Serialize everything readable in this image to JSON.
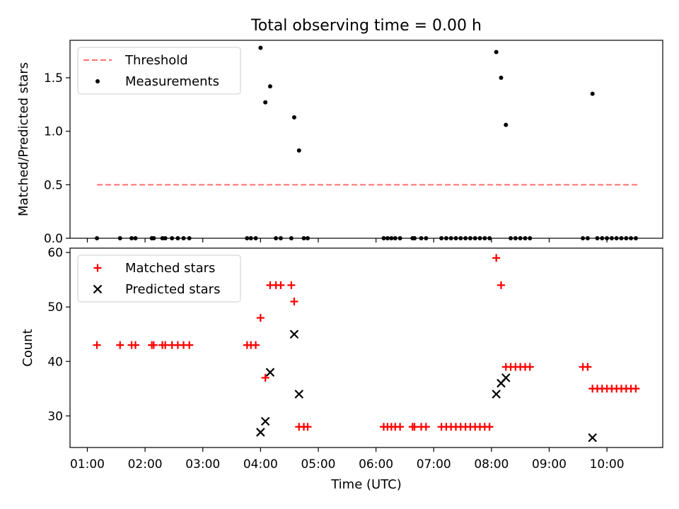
{
  "chart_data": [
    {
      "type": "scatter",
      "title": "Total observing time = 0.00 h",
      "xlabel": "",
      "ylabel": "Matched/Predicted stars",
      "ylim": [
        0,
        1.85
      ],
      "xlim": [
        "00:42",
        "10:58"
      ],
      "y_ticks": [
        "0.0",
        "0.5",
        "1.0",
        "1.5"
      ],
      "x_tick_labels_shown": false,
      "legend_position": "upper left",
      "series": [
        {
          "name": "Threshold",
          "kind": "line",
          "color": "#ff7070",
          "dashed": true,
          "x": [
            "01:10",
            "10:32"
          ],
          "y": [
            0.5,
            0.5
          ]
        },
        {
          "name": "Measurements",
          "kind": "point",
          "color": "#000000",
          "points": [
            [
              "01:10",
              0
            ],
            [
              "01:34",
              0
            ],
            [
              "01:46",
              0
            ],
            [
              "01:50",
              0
            ],
            [
              "02:07",
              0
            ],
            [
              "02:09",
              0
            ],
            [
              "02:18",
              0
            ],
            [
              "02:21",
              0
            ],
            [
              "02:28",
              0
            ],
            [
              "02:34",
              0
            ],
            [
              "02:40",
              0
            ],
            [
              "02:46",
              0
            ],
            [
              "03:46",
              0
            ],
            [
              "03:50",
              0
            ],
            [
              "03:55",
              0
            ],
            [
              "04:00",
              1.78
            ],
            [
              "04:05",
              1.27
            ],
            [
              "04:10",
              1.42
            ],
            [
              "04:16",
              0
            ],
            [
              "04:21",
              0
            ],
            [
              "04:32",
              0
            ],
            [
              "04:35",
              1.13
            ],
            [
              "04:40",
              0.82
            ],
            [
              "04:45",
              0
            ],
            [
              "04:49",
              0
            ],
            [
              "06:08",
              0
            ],
            [
              "06:12",
              0
            ],
            [
              "06:16",
              0
            ],
            [
              "06:20",
              0
            ],
            [
              "06:25",
              0
            ],
            [
              "06:38",
              0
            ],
            [
              "06:40",
              0
            ],
            [
              "06:47",
              0
            ],
            [
              "06:52",
              0
            ],
            [
              "07:08",
              0
            ],
            [
              "07:13",
              0
            ],
            [
              "07:18",
              0
            ],
            [
              "07:23",
              0
            ],
            [
              "07:28",
              0
            ],
            [
              "07:33",
              0
            ],
            [
              "07:38",
              0
            ],
            [
              "07:43",
              0
            ],
            [
              "07:48",
              0
            ],
            [
              "07:53",
              0
            ],
            [
              "07:58",
              0
            ],
            [
              "08:05",
              1.74
            ],
            [
              "08:10",
              1.5
            ],
            [
              "08:15",
              1.06
            ],
            [
              "08:20",
              0
            ],
            [
              "08:25",
              0
            ],
            [
              "08:30",
              0
            ],
            [
              "08:35",
              0
            ],
            [
              "08:40",
              0
            ],
            [
              "09:35",
              0
            ],
            [
              "09:40",
              0
            ],
            [
              "09:45",
              1.35
            ],
            [
              "09:50",
              0
            ],
            [
              "09:55",
              0
            ],
            [
              "10:00",
              0
            ],
            [
              "10:05",
              0
            ],
            [
              "10:10",
              0
            ],
            [
              "10:15",
              0
            ],
            [
              "10:20",
              0
            ],
            [
              "10:25",
              0
            ],
            [
              "10:30",
              0
            ]
          ]
        }
      ]
    },
    {
      "type": "scatter",
      "title": "",
      "xlabel": "Time (UTC)",
      "ylabel": "Count",
      "ylim": [
        24.2,
        60.8
      ],
      "xlim": [
        "00:42",
        "10:58"
      ],
      "y_ticks": [
        "30",
        "40",
        "50",
        "60"
      ],
      "x_ticks": [
        "01:00",
        "02:00",
        "03:00",
        "04:00",
        "05:00",
        "06:00",
        "07:00",
        "08:00",
        "09:00",
        "10:00"
      ],
      "legend_position": "upper left",
      "series": [
        {
          "name": "Matched stars",
          "kind": "plus",
          "color": "#ff0000",
          "points": [
            [
              "01:10",
              43
            ],
            [
              "01:34",
              43
            ],
            [
              "01:46",
              43
            ],
            [
              "01:50",
              43
            ],
            [
              "02:07",
              43
            ],
            [
              "02:09",
              43
            ],
            [
              "02:18",
              43
            ],
            [
              "02:21",
              43
            ],
            [
              "02:28",
              43
            ],
            [
              "02:34",
              43
            ],
            [
              "02:40",
              43
            ],
            [
              "02:46",
              43
            ],
            [
              "03:46",
              43
            ],
            [
              "03:50",
              43
            ],
            [
              "03:55",
              43
            ],
            [
              "04:00",
              48
            ],
            [
              "04:05",
              37
            ],
            [
              "04:10",
              54
            ],
            [
              "04:16",
              54
            ],
            [
              "04:21",
              54
            ],
            [
              "04:32",
              54
            ],
            [
              "04:35",
              51
            ],
            [
              "04:40",
              28
            ],
            [
              "04:45",
              28
            ],
            [
              "04:49",
              28
            ],
            [
              "06:08",
              28
            ],
            [
              "06:12",
              28
            ],
            [
              "06:16",
              28
            ],
            [
              "06:20",
              28
            ],
            [
              "06:25",
              28
            ],
            [
              "06:38",
              28
            ],
            [
              "06:40",
              28
            ],
            [
              "06:47",
              28
            ],
            [
              "06:52",
              28
            ],
            [
              "07:08",
              28
            ],
            [
              "07:13",
              28
            ],
            [
              "07:18",
              28
            ],
            [
              "07:23",
              28
            ],
            [
              "07:28",
              28
            ],
            [
              "07:33",
              28
            ],
            [
              "07:38",
              28
            ],
            [
              "07:43",
              28
            ],
            [
              "07:48",
              28
            ],
            [
              "07:53",
              28
            ],
            [
              "07:58",
              28
            ],
            [
              "08:05",
              59
            ],
            [
              "08:10",
              54
            ],
            [
              "08:15",
              39
            ],
            [
              "08:20",
              39
            ],
            [
              "08:25",
              39
            ],
            [
              "08:30",
              39
            ],
            [
              "08:35",
              39
            ],
            [
              "08:40",
              39
            ],
            [
              "09:35",
              39
            ],
            [
              "09:40",
              39
            ],
            [
              "09:45",
              35
            ],
            [
              "09:50",
              35
            ],
            [
              "09:55",
              35
            ],
            [
              "10:00",
              35
            ],
            [
              "10:05",
              35
            ],
            [
              "10:10",
              35
            ],
            [
              "10:15",
              35
            ],
            [
              "10:20",
              35
            ],
            [
              "10:25",
              35
            ],
            [
              "10:30",
              35
            ]
          ]
        },
        {
          "name": "Predicted stars",
          "kind": "x",
          "color": "#000000",
          "points": [
            [
              "04:00",
              27
            ],
            [
              "04:05",
              29
            ],
            [
              "04:10",
              38
            ],
            [
              "04:35",
              45
            ],
            [
              "04:40",
              34
            ],
            [
              "08:05",
              34
            ],
            [
              "08:10",
              36
            ],
            [
              "08:15",
              37
            ],
            [
              "09:45",
              26
            ]
          ]
        }
      ]
    }
  ]
}
